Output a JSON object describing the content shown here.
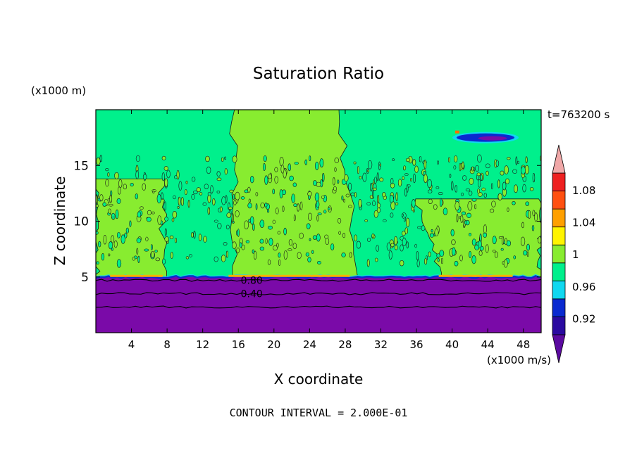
{
  "chart_data": {
    "type": "contour",
    "title": "Saturation Ratio",
    "xlabel": "X coordinate",
    "ylabel": "Z coordinate",
    "x_unit": "(x1000 m/s)",
    "y_unit": "(x1000 m)",
    "time_label": "t=763200 s",
    "footer": "CONTOUR INTERVAL = 2.000E-01",
    "xlim": [
      0,
      50
    ],
    "ylim": [
      0,
      20
    ],
    "x_ticks": [
      4,
      8,
      12,
      16,
      20,
      24,
      28,
      32,
      36,
      40,
      44,
      48
    ],
    "y_ticks": [
      5,
      10,
      15
    ],
    "contour_labels": [
      {
        "text": "0.80",
        "x": 17.5,
        "z": 4.7
      },
      {
        "text": "0.40",
        "x": 17.5,
        "z": 3.5
      }
    ],
    "levels": [
      0.92,
      0.96,
      1,
      1.04,
      1.08
    ],
    "colorbar": {
      "labels": [
        "1.08",
        "1.04",
        "1",
        "0.96",
        "0.92"
      ],
      "colors": [
        "#5b0aa0",
        "#2a0aa0",
        "#0a2ad0",
        "#10d8f0",
        "#00f08c",
        "#88ec30",
        "#fff400",
        "#ffa000",
        "#ff5010",
        "#ee2020",
        "#f0a8a8"
      ]
    },
    "palette": {
      "saturated": "#88ec30",
      "near_one": "#00f08c",
      "subsaturated": "#7a0aa8",
      "blue": "#0a2ad0",
      "cyan": "#10d8f0"
    },
    "regions": {
      "subsaturated_layer_top_z": 5,
      "saturated_bands_x": [
        [
          0,
          7.5
        ],
        [
          15.5,
          29.5
        ],
        [
          39,
          50
        ]
      ],
      "plume_top_right_x": [
        40.5,
        47
      ],
      "plume_top_right_z": 17.5
    }
  }
}
